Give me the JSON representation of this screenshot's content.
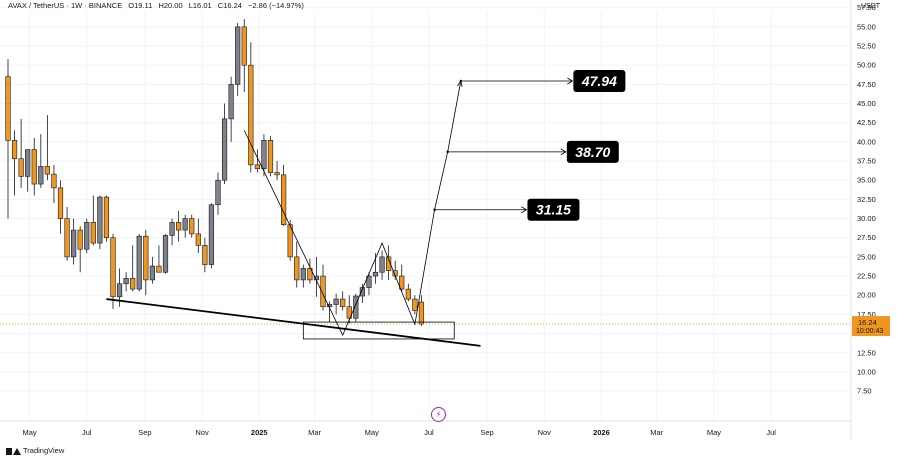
{
  "header": {
    "symbol": "AVAX / TetherUS · 1W · BINANCE",
    "open": "O19.11",
    "high": "H20.00",
    "low": "L16.01",
    "close": "C16.24",
    "change": "−2.86 (−14.97%)"
  },
  "price_axis_unit": "USDT",
  "branding": "TradingView",
  "colors": {
    "up": "#7f8188",
    "down": "#f0961e",
    "price_tag": "#f0961e",
    "callout_bg": "#000000",
    "grid": "#f0f3fa"
  },
  "chart_data": {
    "type": "candlestick",
    "timeframe": "1W",
    "ylim": [
      6,
      60
    ],
    "y_ticks": [
      7.5,
      10,
      12.5,
      15,
      17.5,
      20,
      22.5,
      25,
      27.5,
      30,
      32.5,
      35,
      37.5,
      40,
      42.5,
      45,
      47.5,
      50,
      52.5,
      55,
      57.5
    ],
    "x_start": "2024-04-08",
    "x_ticks": [
      {
        "date": "2024-05-01",
        "label": "May",
        "bold": false
      },
      {
        "date": "2024-07-01",
        "label": "Jul",
        "bold": false
      },
      {
        "date": "2024-09-01",
        "label": "Sep",
        "bold": false
      },
      {
        "date": "2024-11-01",
        "label": "Nov",
        "bold": false
      },
      {
        "date": "2025-01-01",
        "label": "2025",
        "bold": true
      },
      {
        "date": "2025-03-01",
        "label": "Mar",
        "bold": false
      },
      {
        "date": "2025-05-01",
        "label": "May",
        "bold": false
      },
      {
        "date": "2025-07-01",
        "label": "Jul",
        "bold": false
      },
      {
        "date": "2025-09-01",
        "label": "Sep",
        "bold": false
      },
      {
        "date": "2025-11-01",
        "label": "Nov",
        "bold": false
      },
      {
        "date": "2026-01-01",
        "label": "2026",
        "bold": true
      },
      {
        "date": "2026-03-01",
        "label": "Mar",
        "bold": false
      },
      {
        "date": "2026-05-01",
        "label": "May",
        "bold": false
      },
      {
        "date": "2026-07-01",
        "label": "Jul",
        "bold": false
      }
    ],
    "candles": [
      [
        48.5,
        50.8,
        30.0,
        40.2
      ],
      [
        40.2,
        41.5,
        33.0,
        37.8
      ],
      [
        37.8,
        43.0,
        34.0,
        35.5
      ],
      [
        35.5,
        39.0,
        33.5,
        39.0
      ],
      [
        39.0,
        40.5,
        33.0,
        34.5
      ],
      [
        34.5,
        41.0,
        34.0,
        36.8
      ],
      [
        36.8,
        43.5,
        35.0,
        35.8
      ],
      [
        35.8,
        37.0,
        32.0,
        34.0
      ],
      [
        34.0,
        35.0,
        28.0,
        30.0
      ],
      [
        30.0,
        31.5,
        24.5,
        25.0
      ],
      [
        25.0,
        30.0,
        24.0,
        28.5
      ],
      [
        28.5,
        29.0,
        23.0,
        26.0
      ],
      [
        26.0,
        30.0,
        25.5,
        29.5
      ],
      [
        29.5,
        33.0,
        26.5,
        26.8
      ],
      [
        26.8,
        33.0,
        26.0,
        32.8
      ],
      [
        32.8,
        33.0,
        27.0,
        27.5
      ],
      [
        27.5,
        28.0,
        18.2,
        19.8
      ],
      [
        19.8,
        23.5,
        18.5,
        21.5
      ],
      [
        21.5,
        23.0,
        20.5,
        22.2
      ],
      [
        22.2,
        26.5,
        20.5,
        20.8
      ],
      [
        20.8,
        28.0,
        20.5,
        27.7
      ],
      [
        27.7,
        28.5,
        20.0,
        22.0
      ],
      [
        22.0,
        25.0,
        21.5,
        23.8
      ],
      [
        23.8,
        26.5,
        23.0,
        23.0
      ],
      [
        23.0,
        28.0,
        22.8,
        27.8
      ],
      [
        27.8,
        30.0,
        26.5,
        29.5
      ],
      [
        29.5,
        31.0,
        27.0,
        28.5
      ],
      [
        28.5,
        30.5,
        27.5,
        30.0
      ],
      [
        30.0,
        30.5,
        27.5,
        28.0
      ],
      [
        28.0,
        30.0,
        25.5,
        26.5
      ],
      [
        26.5,
        27.5,
        23.0,
        24.0
      ],
      [
        24.0,
        32.0,
        23.5,
        31.8
      ],
      [
        31.8,
        36.0,
        30.5,
        35.0
      ],
      [
        35.0,
        45.0,
        34.5,
        43.0
      ],
      [
        43.0,
        48.5,
        40.0,
        47.5
      ],
      [
        47.5,
        55.5,
        46.0,
        55.0
      ],
      [
        55.0,
        56.0,
        46.5,
        50.0
      ],
      [
        50.0,
        53.0,
        36.0,
        37.0
      ],
      [
        37.0,
        39.0,
        36.0,
        36.5
      ],
      [
        36.5,
        41.0,
        35.5,
        40.2
      ],
      [
        40.2,
        40.8,
        35.5,
        36.0
      ],
      [
        36.0,
        37.5,
        35.0,
        35.7
      ],
      [
        35.7,
        37.0,
        29.0,
        29.2
      ],
      [
        29.2,
        29.8,
        24.5,
        25.0
      ],
      [
        25.0,
        27.0,
        21.0,
        22.0
      ],
      [
        22.0,
        24.0,
        21.0,
        23.5
      ],
      [
        23.5,
        24.8,
        21.5,
        22.0
      ],
      [
        22.0,
        25.0,
        19.8,
        22.5
      ],
      [
        22.5,
        24.0,
        18.0,
        18.5
      ],
      [
        18.5,
        19.2,
        16.5,
        18.8
      ],
      [
        18.8,
        20.2,
        17.5,
        19.5
      ],
      [
        19.5,
        20.5,
        18.0,
        18.5
      ],
      [
        18.5,
        20.0,
        16.3,
        17.0
      ],
      [
        17.0,
        20.2,
        16.5,
        19.9
      ],
      [
        19.9,
        21.5,
        19.0,
        21.0
      ],
      [
        21.0,
        23.0,
        20.0,
        22.5
      ],
      [
        22.5,
        25.5,
        21.5,
        23.0
      ],
      [
        23.0,
        25.8,
        22.0,
        25.0
      ],
      [
        25.0,
        26.5,
        22.0,
        23.2
      ],
      [
        23.2,
        24.5,
        22.0,
        22.5
      ],
      [
        22.5,
        24.0,
        20.5,
        20.8
      ],
      [
        20.8,
        21.5,
        19.2,
        19.5
      ],
      [
        19.5,
        20.0,
        17.5,
        18.0
      ],
      [
        19.11,
        20.0,
        16.01,
        16.24
      ]
    ],
    "last_price": {
      "value": 16.24,
      "label": "16.24",
      "countdown": "10:00:43"
    },
    "annotations": {
      "support_line": [
        [
          "2024-07-22",
          19.5
        ],
        [
          "2025-08-25",
          13.4
        ]
      ],
      "support_box": {
        "from": "2025-02-17",
        "to": "2025-07-28",
        "low": 14.3,
        "high": 16.5
      },
      "pattern_path": [
        [
          "2024-12-16",
          41.5
        ],
        [
          "2025-03-31",
          14.8
        ],
        [
          "2025-05-12",
          26.8
        ],
        [
          "2025-06-16",
          16.2
        ],
        [
          "2025-07-07",
          31.15
        ],
        [
          "2025-07-21",
          38.7
        ],
        [
          "2025-08-04",
          47.94
        ]
      ],
      "targets": [
        {
          "from": "2025-07-07",
          "value": 31.15,
          "label": "31.15",
          "box_x": "2025-10-13"
        },
        {
          "from": "2025-07-21",
          "value": 38.7,
          "label": "38.70",
          "box_x": "2025-11-24"
        },
        {
          "from": "2025-08-04",
          "value": 47.94,
          "label": "47.94",
          "box_x": "2025-12-01"
        }
      ]
    }
  }
}
